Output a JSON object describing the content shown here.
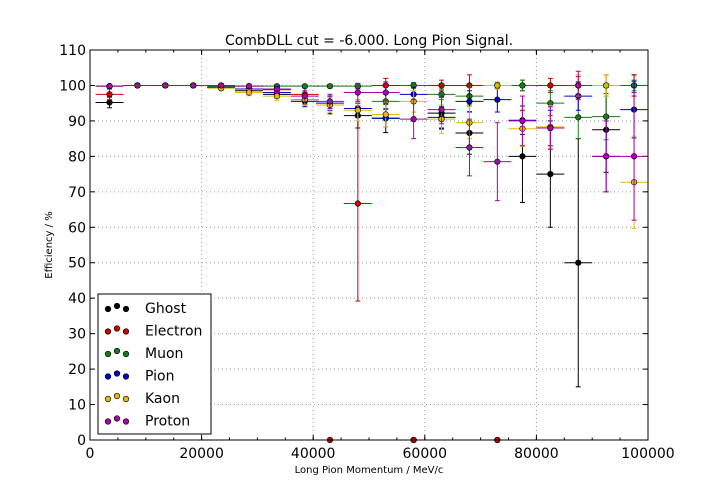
{
  "chart_data": {
    "type": "scatter",
    "title": "CombDLL cut = -6.000. Long Pion Signal.",
    "xlabel": "Long Pion Momentum / MeV/c",
    "ylabel": "Efficiency / %",
    "xlim": [
      0,
      100000
    ],
    "ylim": [
      0,
      110
    ],
    "xticks": [
      "0",
      "20000",
      "40000",
      "60000",
      "80000",
      "100000"
    ],
    "yticks": [
      "0",
      "10",
      "20",
      "30",
      "40",
      "50",
      "60",
      "70",
      "80",
      "90",
      "100",
      "110"
    ],
    "grid": true,
    "legend_position": "bottom-left",
    "bin_half_width": 2500,
    "x": [
      3500,
      8500,
      13500,
      18500,
      23500,
      28500,
      33500,
      38500,
      43000,
      48000,
      53000,
      58000,
      63000,
      68000,
      73000,
      77500,
      82500,
      87500,
      92500,
      97500
    ],
    "series": [
      {
        "name": "Ghost",
        "color": "#000000",
        "values": [
          95.2,
          100,
          100,
          100,
          99.5,
          98.5,
          97.5,
          96.0,
          94.5,
          91.5,
          90.7,
          0,
          92.2,
          86.6,
          0,
          80.0,
          75.0,
          50.0,
          87.5,
          100
        ],
        "yerr": [
          1.5,
          0.4,
          0.3,
          0.3,
          0.6,
          0.8,
          1.0,
          1.5,
          2.5,
          3.5,
          4.0,
          0,
          4.5,
          6.0,
          0,
          13.0,
          15.0,
          35.0,
          12.0,
          3.0
        ]
      },
      {
        "name": "Electron",
        "color": "#cc0000",
        "values": [
          97.5,
          100,
          100,
          100,
          100,
          99.0,
          98.8,
          97.5,
          0,
          66.7,
          100,
          0,
          100,
          100,
          0,
          100,
          100,
          100,
          100,
          100
        ],
        "yerr": [
          1.5,
          0.5,
          0.5,
          0.5,
          0.6,
          1.0,
          1.5,
          2.0,
          0,
          27.5,
          2.0,
          0,
          1.5,
          3.0,
          0,
          1.5,
          2.0,
          2.5,
          3.0,
          3.0
        ]
      },
      {
        "name": "Muon",
        "color": "#1a7a1a",
        "values": [
          99.8,
          100,
          100,
          100,
          99.8,
          99.8,
          99.8,
          99.8,
          99.8,
          99.8,
          95.5,
          100,
          97.5,
          97.0,
          100,
          100,
          95.0,
          91.0,
          91.2,
          100
        ],
        "yerr": [
          0.3,
          0.3,
          0.3,
          0.3,
          0.3,
          0.3,
          0.3,
          0.3,
          0.5,
          0.8,
          2.0,
          0.8,
          1.5,
          2.5,
          0.8,
          1.5,
          3.5,
          6.0,
          6.5,
          1.5
        ]
      },
      {
        "name": "Pion",
        "color": "#0000cc",
        "values": [
          99.8,
          100,
          100,
          100,
          99.5,
          99.0,
          98.0,
          95.5,
          95.0,
          93.5,
          90.8,
          97.5,
          91.0,
          95.5,
          96.0,
          90.2,
          88.0,
          97.0,
          80.0,
          93.2
        ],
        "yerr": [
          0.3,
          0.3,
          0.3,
          0.3,
          0.5,
          0.8,
          1.0,
          1.5,
          2.0,
          2.5,
          2.5,
          2.0,
          3.0,
          3.0,
          3.5,
          4.0,
          5.0,
          4.0,
          10.0,
          8.0
        ]
      },
      {
        "name": "Kaon",
        "color": "#e6b800",
        "values": [
          99.8,
          100,
          100,
          100,
          99.2,
          98.0,
          97.0,
          96.0,
          94.5,
          93.0,
          91.8,
          95.5,
          90.5,
          89.5,
          100,
          87.8,
          88.3,
          100,
          100,
          72.7
        ],
        "yerr": [
          0.3,
          0.3,
          0.3,
          0.3,
          0.6,
          0.9,
          1.2,
          1.6,
          2.0,
          3.0,
          3.5,
          3.0,
          4.0,
          4.5,
          1.0,
          5.0,
          6.0,
          3.0,
          3.0,
          13.0
        ]
      },
      {
        "name": "Proton",
        "color": "#aa00aa",
        "values": [
          99.8,
          100,
          100,
          100,
          100,
          99.8,
          99.0,
          97.0,
          95.5,
          98.0,
          98.0,
          90.5,
          93.2,
          82.5,
          78.5,
          90.0,
          88.0,
          100,
          80.0,
          80.0
        ],
        "yerr": [
          0.3,
          0.3,
          0.3,
          0.3,
          0.5,
          0.6,
          1.0,
          1.5,
          2.0,
          2.5,
          3.0,
          5.5,
          4.0,
          8.0,
          11.0,
          7.0,
          6.0,
          4.0,
          10.0,
          18.0
        ]
      }
    ]
  }
}
